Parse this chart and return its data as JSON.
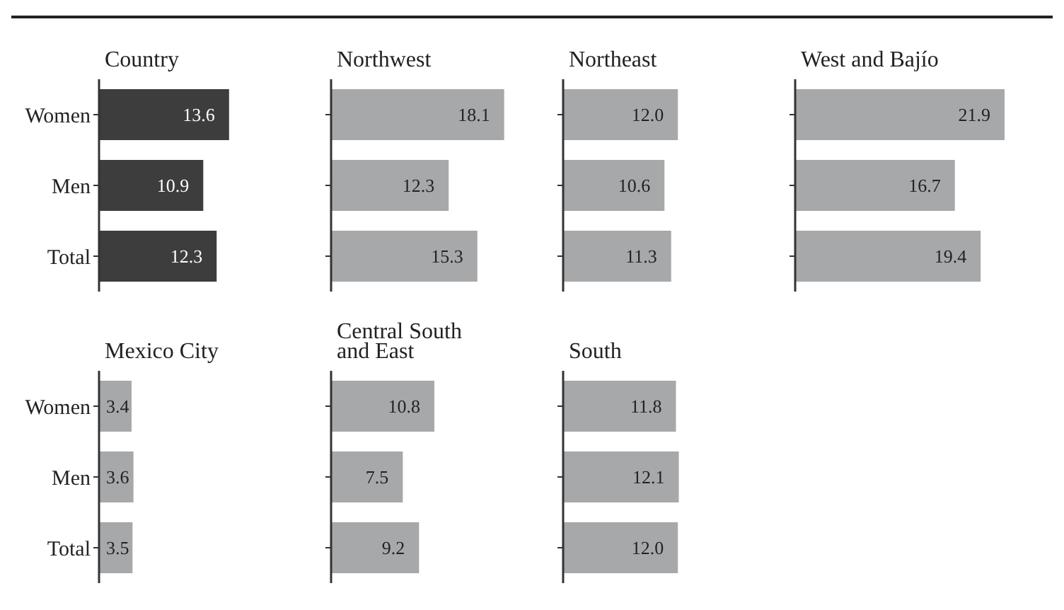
{
  "chart_data": [
    {
      "type": "bar",
      "orientation": "horizontal",
      "title": "Country",
      "categories": [
        "Women",
        "Men",
        "Total"
      ],
      "values": [
        13.6,
        10.9,
        12.3
      ],
      "value_labels": [
        "13.6",
        "10.9",
        "12.3"
      ],
      "color": "#3d3d3d",
      "tick_labels": "y"
    },
    {
      "type": "bar",
      "orientation": "horizontal",
      "title": "Northwest",
      "categories": [
        null,
        null,
        null
      ],
      "values": [
        18.1,
        12.3,
        15.3
      ],
      "value_labels": [
        "18.1",
        "12.3",
        "15.3"
      ],
      "color": "#a7a8aa",
      "tick_labels": false
    },
    {
      "type": "bar",
      "orientation": "horizontal",
      "title": "Northeast",
      "categories": [
        null,
        null,
        null
      ],
      "values": [
        12.0,
        10.6,
        11.3
      ],
      "value_labels": [
        "12.0",
        "10.6",
        "11.3"
      ],
      "color": "#a7a8aa",
      "tick_labels": false
    },
    {
      "type": "bar",
      "orientation": "horizontal",
      "title": "West and Bajío",
      "categories": [
        null,
        null,
        null
      ],
      "values": [
        21.9,
        16.7,
        19.4
      ],
      "value_labels": [
        "21.9",
        "16.7",
        "19.4"
      ],
      "color": "#a7a8aa",
      "tick_labels": false
    },
    {
      "type": "bar",
      "orientation": "horizontal",
      "title": "Mexico City",
      "categories": [
        "Women",
        "Men",
        "Total"
      ],
      "values": [
        3.4,
        3.6,
        3.5
      ],
      "value_labels": [
        "3.4",
        "3.6",
        "3.5"
      ],
      "color": "#a7a8aa",
      "tick_labels": "y"
    },
    {
      "type": "bar",
      "orientation": "horizontal",
      "title": "Central South and East",
      "categories": [
        null,
        null,
        null
      ],
      "values": [
        10.8,
        7.5,
        9.2
      ],
      "value_labels": [
        "10.8",
        "7.5",
        "9.2"
      ],
      "color": "#a7a8aa",
      "tick_labels": false
    },
    {
      "type": "bar",
      "orientation": "horizontal",
      "title": "South",
      "categories": [
        null,
        null,
        null
      ],
      "values": [
        11.8,
        12.1,
        12.0
      ],
      "value_labels": [
        "11.8",
        "12.1",
        "12.0"
      ],
      "color": "#a7a8aa",
      "tick_labels": false
    }
  ]
}
